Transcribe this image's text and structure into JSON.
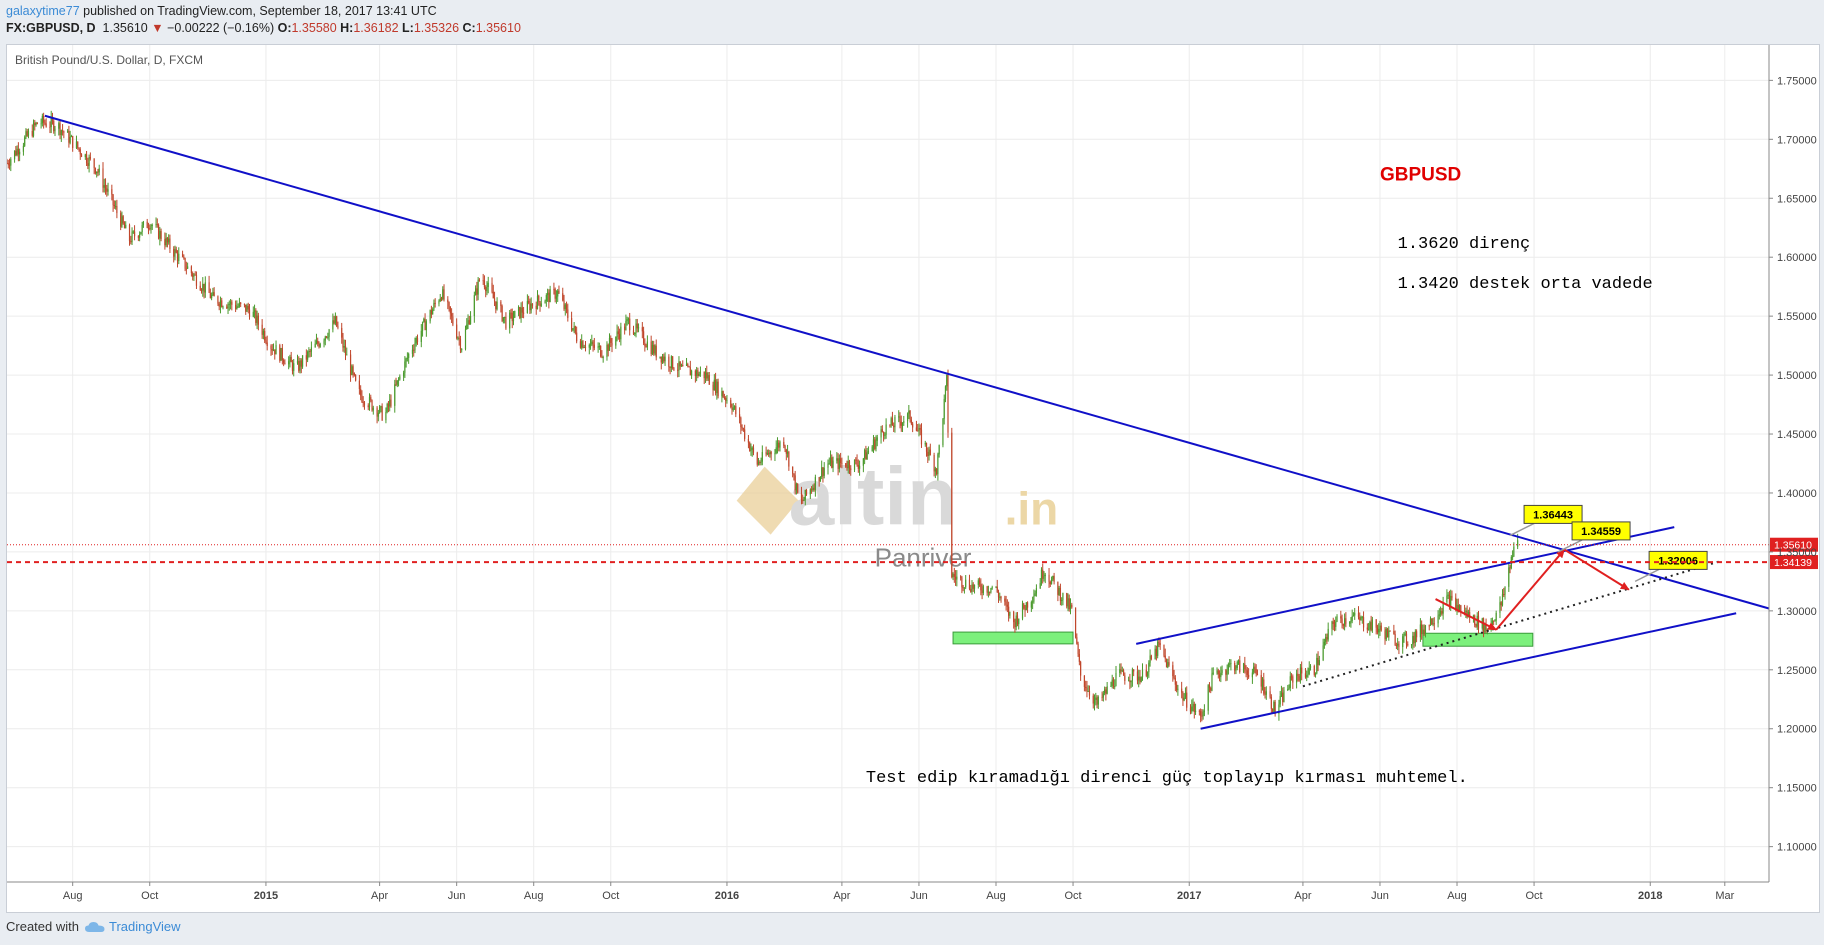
{
  "header": {
    "user": "galaxytime77",
    "published": "published on TradingView.com, September 18, 2017 13:41 UTC",
    "symbol": "FX:GBPUSD, D",
    "last": "1.35610",
    "change": "−0.00222 (−0.16%)",
    "o_label": "O:",
    "o": "1.35580",
    "h_label": "H:",
    "h": "1.36182",
    "l_label": "L:",
    "l": "1.35326",
    "c_label": "C:",
    "c": "1.35610"
  },
  "chart_title": "British Pound/U.S. Dollar, D, FXCM",
  "footer": {
    "created_with": "Created with",
    "brand": "TradingView"
  },
  "colors": {
    "up": "#4a9a2d",
    "down": "#c0462b",
    "trend": "#1010c8",
    "label_bg": "#ffff00",
    "zone": "#7cf07c",
    "red_line": "#e02020"
  },
  "chart_data": {
    "type": "candlestick",
    "title": "GBPUSD",
    "y_ticks": [
      "1.75000",
      "1.70000",
      "1.65000",
      "1.60000",
      "1.55000",
      "1.50000",
      "1.45000",
      "1.40000",
      "1.35000",
      "1.30000",
      "1.25000",
      "1.20000",
      "1.15000",
      "1.10000"
    ],
    "ylim": [
      1.07,
      1.78
    ],
    "x_ticks": [
      "Aug",
      "Oct",
      "2015",
      "Apr",
      "Jun",
      "Aug",
      "Oct",
      "2016",
      "Apr",
      "Jun",
      "Aug",
      "Oct",
      "2017",
      "Apr",
      "Jun",
      "Aug",
      "Oct",
      "2018",
      "Mar"
    ],
    "x_tick_dates": [
      "2014-08-01",
      "2014-10-01",
      "2015-01-01",
      "2015-04-01",
      "2015-06-01",
      "2015-08-01",
      "2015-10-01",
      "2016-01-01",
      "2016-04-01",
      "2016-06-01",
      "2016-08-01",
      "2016-10-01",
      "2017-01-01",
      "2017-04-01",
      "2017-06-01",
      "2017-08-01",
      "2017-10-01",
      "2018-01-01",
      "2018-03-01"
    ],
    "x_range": [
      "2014-06-10",
      "2018-04-05"
    ],
    "price_path": [
      [
        "2014-06-10",
        1.68
      ],
      [
        "2014-07-05",
        1.715
      ],
      [
        "2014-07-20",
        1.712
      ],
      [
        "2014-08-20",
        1.675
      ],
      [
        "2014-09-15",
        1.615
      ],
      [
        "2014-10-01",
        1.63
      ],
      [
        "2014-10-20",
        1.605
      ],
      [
        "2014-11-20",
        1.565
      ],
      [
        "2014-12-20",
        1.555
      ],
      [
        "2015-01-05",
        1.525
      ],
      [
        "2015-01-25",
        1.505
      ],
      [
        "2015-02-25",
        1.545
      ],
      [
        "2015-03-15",
        1.485
      ],
      [
        "2015-04-05",
        1.465
      ],
      [
        "2015-04-25",
        1.52
      ],
      [
        "2015-05-20",
        1.57
      ],
      [
        "2015-06-05",
        1.525
      ],
      [
        "2015-06-20",
        1.585
      ],
      [
        "2015-07-10",
        1.545
      ],
      [
        "2015-07-30",
        1.56
      ],
      [
        "2015-08-20",
        1.57
      ],
      [
        "2015-09-05",
        1.53
      ],
      [
        "2015-09-25",
        1.52
      ],
      [
        "2015-10-15",
        1.545
      ],
      [
        "2015-11-05",
        1.52
      ],
      [
        "2015-11-25",
        1.505
      ],
      [
        "2015-12-15",
        1.5
      ],
      [
        "2016-01-05",
        1.475
      ],
      [
        "2016-01-25",
        1.425
      ],
      [
        "2016-02-15",
        1.445
      ],
      [
        "2016-02-28",
        1.39
      ],
      [
        "2016-03-20",
        1.425
      ],
      [
        "2016-04-15",
        1.425
      ],
      [
        "2016-05-05",
        1.455
      ],
      [
        "2016-05-25",
        1.465
      ],
      [
        "2016-06-15",
        1.42
      ],
      [
        "2016-06-23",
        1.495
      ],
      [
        "2016-06-27",
        1.33
      ],
      [
        "2016-07-15",
        1.32
      ],
      [
        "2016-07-31",
        1.32
      ],
      [
        "2016-08-15",
        1.29
      ],
      [
        "2016-08-31",
        1.315
      ],
      [
        "2016-09-08",
        1.335
      ],
      [
        "2016-09-30",
        1.3
      ],
      [
        "2016-10-07",
        1.245
      ],
      [
        "2016-10-20",
        1.22
      ],
      [
        "2016-11-05",
        1.245
      ],
      [
        "2016-11-25",
        1.245
      ],
      [
        "2016-12-08",
        1.27
      ],
      [
        "2016-12-25",
        1.23
      ],
      [
        "2017-01-10",
        1.21
      ],
      [
        "2017-01-20",
        1.245
      ],
      [
        "2017-02-05",
        1.255
      ],
      [
        "2017-02-25",
        1.245
      ],
      [
        "2017-03-10",
        1.215
      ],
      [
        "2017-03-25",
        1.245
      ],
      [
        "2017-04-10",
        1.25
      ],
      [
        "2017-04-25",
        1.29
      ],
      [
        "2017-05-10",
        1.295
      ],
      [
        "2017-05-30",
        1.285
      ],
      [
        "2017-06-15",
        1.275
      ],
      [
        "2017-06-25",
        1.275
      ],
      [
        "2017-07-10",
        1.29
      ],
      [
        "2017-07-25",
        1.31
      ],
      [
        "2017-08-05",
        1.3
      ],
      [
        "2017-08-25",
        1.285
      ],
      [
        "2017-09-05",
        1.305
      ],
      [
        "2017-09-15",
        1.355
      ],
      [
        "2017-09-18",
        1.356
      ]
    ],
    "trendlines": [
      {
        "p1": [
          "2014-07-10",
          1.72
        ],
        "p2": [
          "2018-04-05",
          1.302
        ]
      },
      {
        "p1": [
          "2016-11-20",
          1.272
        ],
        "p2": [
          "2018-01-20",
          1.371
        ]
      },
      {
        "p1": [
          "2017-01-10",
          1.2
        ],
        "p2": [
          "2018-03-10",
          1.298
        ]
      }
    ],
    "dotted_support": {
      "p1": [
        "2017-04-01",
        1.236
      ],
      "p2": [
        "2018-02-25",
        1.342
      ]
    },
    "support_zones": [
      {
        "from": "2016-06-28",
        "to": "2016-10-01",
        "low": 1.272,
        "high": 1.282
      },
      {
        "from": "2017-07-05",
        "to": "2017-09-30",
        "low": 1.27,
        "high": 1.281
      }
    ],
    "red_arrows": [
      {
        "from": [
          "2017-07-15",
          1.31
        ],
        "to": [
          "2017-09-01",
          1.284
        ]
      },
      {
        "from": [
          "2017-09-01",
          1.284
        ],
        "to": [
          "2017-10-25",
          1.352
        ]
      },
      {
        "from": [
          "2017-10-25",
          1.352
        ],
        "to": [
          "2017-12-15",
          1.318
        ]
      }
    ],
    "callouts": [
      {
        "text": "1.36443",
        "date": "2017-09-12",
        "price": 1.364
      },
      {
        "text": "1.34559",
        "date": "2017-10-20",
        "price": 1.35
      },
      {
        "text": "1.32006",
        "date": "2017-12-20",
        "price": 1.325
      }
    ],
    "price_lines": [
      {
        "price": 1.3561,
        "label": "1.35610",
        "style": "dotted"
      },
      {
        "price": 1.34139,
        "label": "1.34139",
        "style": "dashed"
      }
    ],
    "annotations": [
      {
        "text": "GBPUSD",
        "date": "2017-06-01",
        "price": 1.665,
        "style": "title"
      },
      {
        "text": "1.3620 direnç",
        "date": "2017-06-15",
        "price": 1.608,
        "style": "mono"
      },
      {
        "text": "1.3420 destek  orta vadede",
        "date": "2017-06-15",
        "price": 1.574,
        "style": "mono"
      },
      {
        "text": "Test edip kıramadığı direnci güç toplayıp kırması muhtemel.",
        "date": "2016-04-20",
        "price": 1.155,
        "style": "mono"
      }
    ],
    "watermark": {
      "brand": "altin",
      "suffix": ".in",
      "sub": "Panriver"
    }
  }
}
